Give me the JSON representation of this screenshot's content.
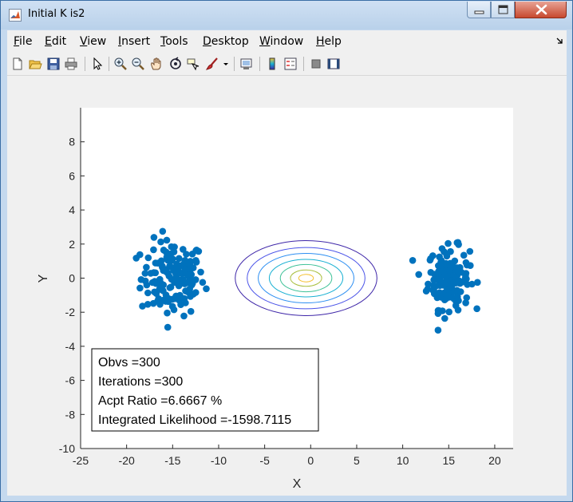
{
  "window": {
    "title": "Initial K is2"
  },
  "menu": {
    "items": [
      {
        "name": "file",
        "label": "File",
        "first": "F",
        "rest": "ile"
      },
      {
        "name": "edit",
        "label": "Edit",
        "first": "E",
        "rest": "dit"
      },
      {
        "name": "view",
        "label": "View",
        "first": "V",
        "rest": "iew"
      },
      {
        "name": "insert",
        "label": "Insert",
        "first": "I",
        "rest": "nsert"
      },
      {
        "name": "tools",
        "label": "Tools",
        "first": "T",
        "rest": "ools"
      },
      {
        "name": "desktop",
        "label": "Desktop",
        "first": "D",
        "rest": "esktop"
      },
      {
        "name": "window",
        "label": "Window",
        "first": "W",
        "rest": "indow"
      },
      {
        "name": "help",
        "label": "Help",
        "first": "H",
        "rest": "elp"
      }
    ]
  },
  "toolbar": {
    "icons": [
      "new-figure-icon",
      "open-file-icon",
      "save-icon",
      "print-icon",
      "edit-plot-arrow-icon",
      "zoom-in-icon",
      "zoom-out-icon",
      "pan-hand-icon",
      "rotate-3d-icon",
      "data-cursor-icon",
      "brush-icon",
      "dropdown-arrow-icon",
      "link-plot-icon",
      "colorbar-icon",
      "legend-icon",
      "hide-plot-tools-icon",
      "show-plot-tools-icon"
    ]
  },
  "chart_data": {
    "type": "scatter",
    "title": "",
    "xlabel": "X",
    "ylabel": "Y",
    "xlim": [
      -25,
      22
    ],
    "ylim": [
      -10,
      10
    ],
    "xticks": [
      -25,
      -20,
      -15,
      -10,
      -5,
      0,
      5,
      10,
      15,
      20
    ],
    "yticks": [
      -10,
      -8,
      -6,
      -4,
      -2,
      0,
      2,
      4,
      6,
      8
    ],
    "grid": false,
    "marker_color": "#0072bd",
    "clusters": [
      {
        "center": [
          -15,
          0
        ],
        "spread": [
          2.3,
          1.1
        ],
        "count": 150
      },
      {
        "center": [
          15,
          0
        ],
        "spread": [
          1.5,
          0.9
        ],
        "count": 150
      }
    ],
    "contour": {
      "center": [
        -0.5,
        0
      ],
      "radii": [
        [
          7.7,
          2.2
        ],
        [
          6.4,
          1.8
        ],
        [
          5.2,
          1.45
        ],
        [
          4.0,
          1.1
        ],
        [
          2.8,
          0.8
        ],
        [
          1.7,
          0.48
        ],
        [
          0.8,
          0.22
        ]
      ],
      "colors": [
        "#3e26a8",
        "#4a53e8",
        "#2d8ff2",
        "#18b0d2",
        "#3fc298",
        "#a9bf3f",
        "#f4c132"
      ]
    },
    "annotation": {
      "lines": [
        "Obvs =300",
        "Iterations =300",
        "Acpt Ratio =6.6667 %",
        "Integrated Likelihood =-1598.7115"
      ]
    }
  }
}
